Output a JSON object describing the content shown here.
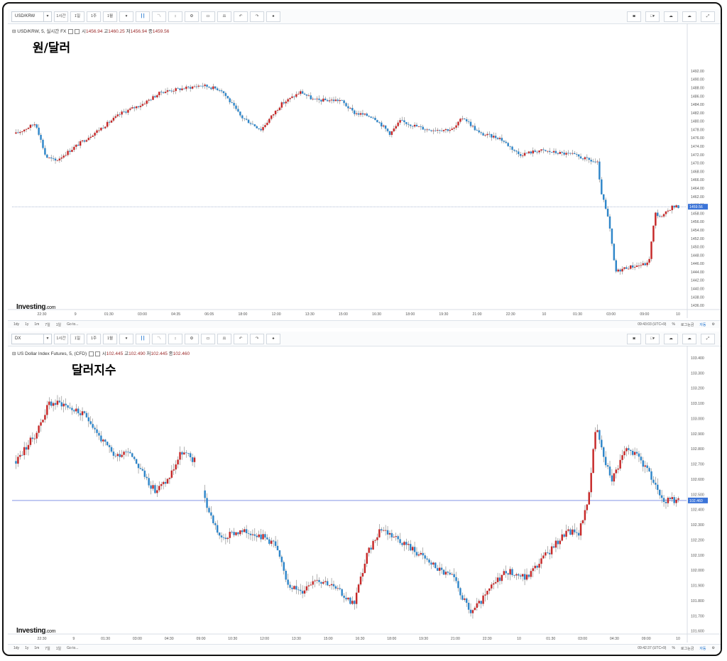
{
  "panels": [
    {
      "symbol": "USD/KRW",
      "toolbar": {
        "interval": "1시간",
        "d1": "1일",
        "w1": "1주",
        "m1": "1월"
      },
      "legend": {
        "name": "USD/KRW, 5, 실시간 FX",
        "o_label": "시",
        "o": "1456.94",
        "h_label": "고",
        "h": "1460.25",
        "l_label": "저",
        "l": "1456.94",
        "c_label": "종",
        "c": "1459.56"
      },
      "overlay_title": "원/달러",
      "brand": "Investing",
      "brand_suffix": ".com",
      "status_time": "09:43:03 (UTC+9)",
      "status_items": [
        "%",
        "로그눈금",
        "자동"
      ],
      "timebar": [
        "1dy",
        "1y",
        "1m",
        "7일",
        "1일",
        "Go to..."
      ],
      "chart_data": {
        "type": "candlestick",
        "title": "USD/KRW, 5, 실시간 FX",
        "ylim": [
          1435,
          1503
        ],
        "y_ticks": [
          "1436.00",
          "1438.00",
          "1440.00",
          "1442.00",
          "1444.00",
          "1446.00",
          "1448.00",
          "1450.00",
          "1452.00",
          "1454.00",
          "1456.00",
          "1458.00",
          "1460.00",
          "1462.00",
          "1464.00",
          "1466.00",
          "1468.00",
          "1470.00",
          "1472.00",
          "1474.00",
          "1476.00",
          "1478.00",
          "1480.00",
          "1482.00",
          "1484.00",
          "1486.00",
          "1488.00",
          "1490.00",
          "1492.00"
        ],
        "x_ticks": [
          "22:30",
          "9",
          "01:30",
          "03:00",
          "04:35",
          "06:05",
          "18:00",
          "12:00",
          "13:30",
          "15:00",
          "16:30",
          "18:00",
          "19:30",
          "21:00",
          "22:30",
          "10",
          "01:30",
          "03:00",
          "09:00",
          "10"
        ],
        "last_price": "1459.56",
        "last_value": 1459.56,
        "anchors": [
          [
            0,
            1477
          ],
          [
            0.03,
            1479.5
          ],
          [
            0.045,
            1471.5
          ],
          [
            0.06,
            1470.5
          ],
          [
            0.09,
            1474
          ],
          [
            0.13,
            1478.5
          ],
          [
            0.16,
            1482
          ],
          [
            0.19,
            1484
          ],
          [
            0.22,
            1487
          ],
          [
            0.26,
            1488
          ],
          [
            0.28,
            1488.6
          ],
          [
            0.31,
            1487.5
          ],
          [
            0.34,
            1481
          ],
          [
            0.37,
            1478
          ],
          [
            0.4,
            1484
          ],
          [
            0.43,
            1487
          ],
          [
            0.45,
            1485
          ],
          [
            0.49,
            1485
          ],
          [
            0.51,
            1482
          ],
          [
            0.54,
            1481
          ],
          [
            0.565,
            1477
          ],
          [
            0.58,
            1480
          ],
          [
            0.62,
            1478
          ],
          [
            0.66,
            1478
          ],
          [
            0.675,
            1481
          ],
          [
            0.7,
            1477
          ],
          [
            0.73,
            1476
          ],
          [
            0.76,
            1472
          ],
          [
            0.79,
            1473
          ],
          [
            0.84,
            1472
          ],
          [
            0.878,
            1470
          ],
          [
            0.882,
            1464
          ],
          [
            0.895,
            1456
          ],
          [
            0.905,
            1444
          ],
          [
            0.92,
            1445
          ],
          [
            0.955,
            1446
          ],
          [
            0.965,
            1458
          ],
          [
            0.975,
            1457
          ],
          [
            0.99,
            1459.56
          ]
        ]
      }
    },
    {
      "symbol": "DX",
      "toolbar": {
        "interval": "1시간",
        "d1": "1일",
        "w1": "1주",
        "m1": "1월"
      },
      "legend": {
        "name": "US Dollar Index Futures, 5, (CFD)",
        "o_label": "시",
        "o": "102.445",
        "h_label": "고",
        "h": "102.490",
        "l_label": "저",
        "l": "102.445",
        "c_label": "종",
        "c": "102.460"
      },
      "overlay_title": "달러지수",
      "brand": "Investing",
      "brand_suffix": ".com",
      "status_time": "09:42:37 (UTC+9)",
      "status_items": [
        "%",
        "로그눈금",
        "자동"
      ],
      "timebar": [
        "1dy",
        "1y",
        "1m",
        "7일",
        "1일",
        "Go to..."
      ],
      "chart_data": {
        "type": "candlestick",
        "title": "US Dollar Index Futures, 5, (CFD)",
        "ylim": [
          101.58,
          103.47
        ],
        "y_ticks": [
          "101.600",
          "101.700",
          "101.800",
          "101.900",
          "102.000",
          "102.100",
          "102.200",
          "102.300",
          "102.400",
          "102.500",
          "102.600",
          "102.700",
          "102.800",
          "102.900",
          "103.000",
          "103.100",
          "103.200",
          "103.300",
          "103.400"
        ],
        "x_ticks": [
          "22:30",
          "9",
          "01:30",
          "03:00",
          "04:30",
          "09:00",
          "10:30",
          "12:00",
          "13:30",
          "15:00",
          "16:30",
          "18:00",
          "19:30",
          "21:00",
          "22:30",
          "10",
          "01:30",
          "03:00",
          "04:30",
          "09:00",
          "10"
        ],
        "last_price": "102.460",
        "last_value": 102.46,
        "anchors": [
          [
            0,
            102.72
          ],
          [
            0.03,
            102.9
          ],
          [
            0.05,
            103.1
          ],
          [
            0.07,
            103.1
          ],
          [
            0.09,
            103.05
          ],
          [
            0.11,
            103.0
          ],
          [
            0.13,
            102.85
          ],
          [
            0.15,
            102.75
          ],
          [
            0.17,
            102.8
          ],
          [
            0.19,
            102.65
          ],
          [
            0.21,
            102.52
          ],
          [
            0.23,
            102.6
          ],
          [
            0.25,
            102.78
          ],
          [
            0.27,
            102.72
          ],
          [
            0.29,
            102.4
          ],
          [
            0.31,
            102.2
          ],
          [
            0.33,
            102.25
          ],
          [
            0.36,
            102.25
          ],
          [
            0.39,
            102.18
          ],
          [
            0.41,
            101.92
          ],
          [
            0.43,
            101.85
          ],
          [
            0.45,
            101.95
          ],
          [
            0.47,
            101.92
          ],
          [
            0.49,
            101.85
          ],
          [
            0.51,
            101.78
          ],
          [
            0.53,
            102.1
          ],
          [
            0.55,
            102.28
          ],
          [
            0.58,
            102.2
          ],
          [
            0.61,
            102.1
          ],
          [
            0.64,
            102.0
          ],
          [
            0.66,
            101.95
          ],
          [
            0.685,
            101.72
          ],
          [
            0.7,
            101.78
          ],
          [
            0.72,
            101.9
          ],
          [
            0.74,
            102.0
          ],
          [
            0.77,
            101.95
          ],
          [
            0.79,
            102.05
          ],
          [
            0.81,
            102.15
          ],
          [
            0.83,
            102.25
          ],
          [
            0.85,
            102.25
          ],
          [
            0.865,
            102.5
          ],
          [
            0.875,
            102.95
          ],
          [
            0.89,
            102.7
          ],
          [
            0.9,
            102.6
          ],
          [
            0.92,
            102.8
          ],
          [
            0.94,
            102.75
          ],
          [
            0.96,
            102.6
          ],
          [
            0.98,
            102.46
          ]
        ]
      }
    }
  ]
}
